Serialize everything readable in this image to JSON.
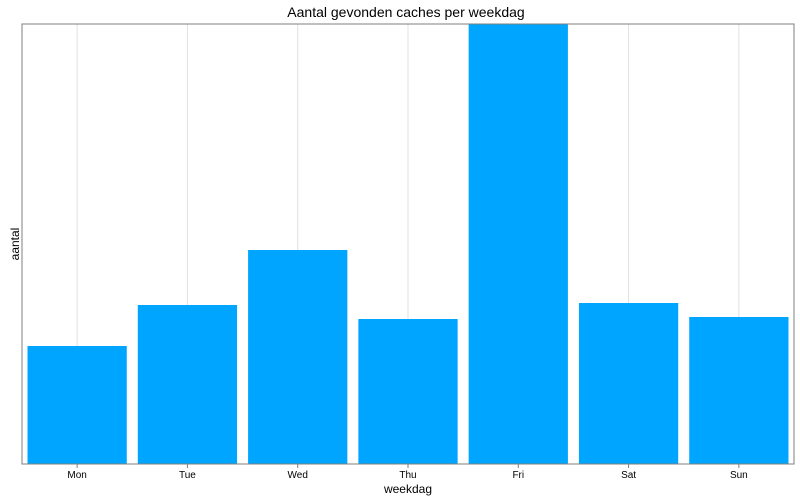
{
  "chart_data": {
    "type": "bar",
    "title": "Aantal gevonden caches per weekdag",
    "xlabel": "weekdag",
    "ylabel": "aantal",
    "categories": [
      "Mon",
      "Tue",
      "Wed",
      "Thu",
      "Fri",
      "Sat",
      "Sun"
    ],
    "values": [
      118,
      159,
      214,
      145,
      440,
      161,
      147
    ],
    "ylim": [
      0,
      440
    ],
    "grid": "vertical",
    "y_ticks_shown": false,
    "bar_color": "#00a5ff",
    "grid_color": "#e0e0e0",
    "frame_color": "#7f7f7f"
  }
}
